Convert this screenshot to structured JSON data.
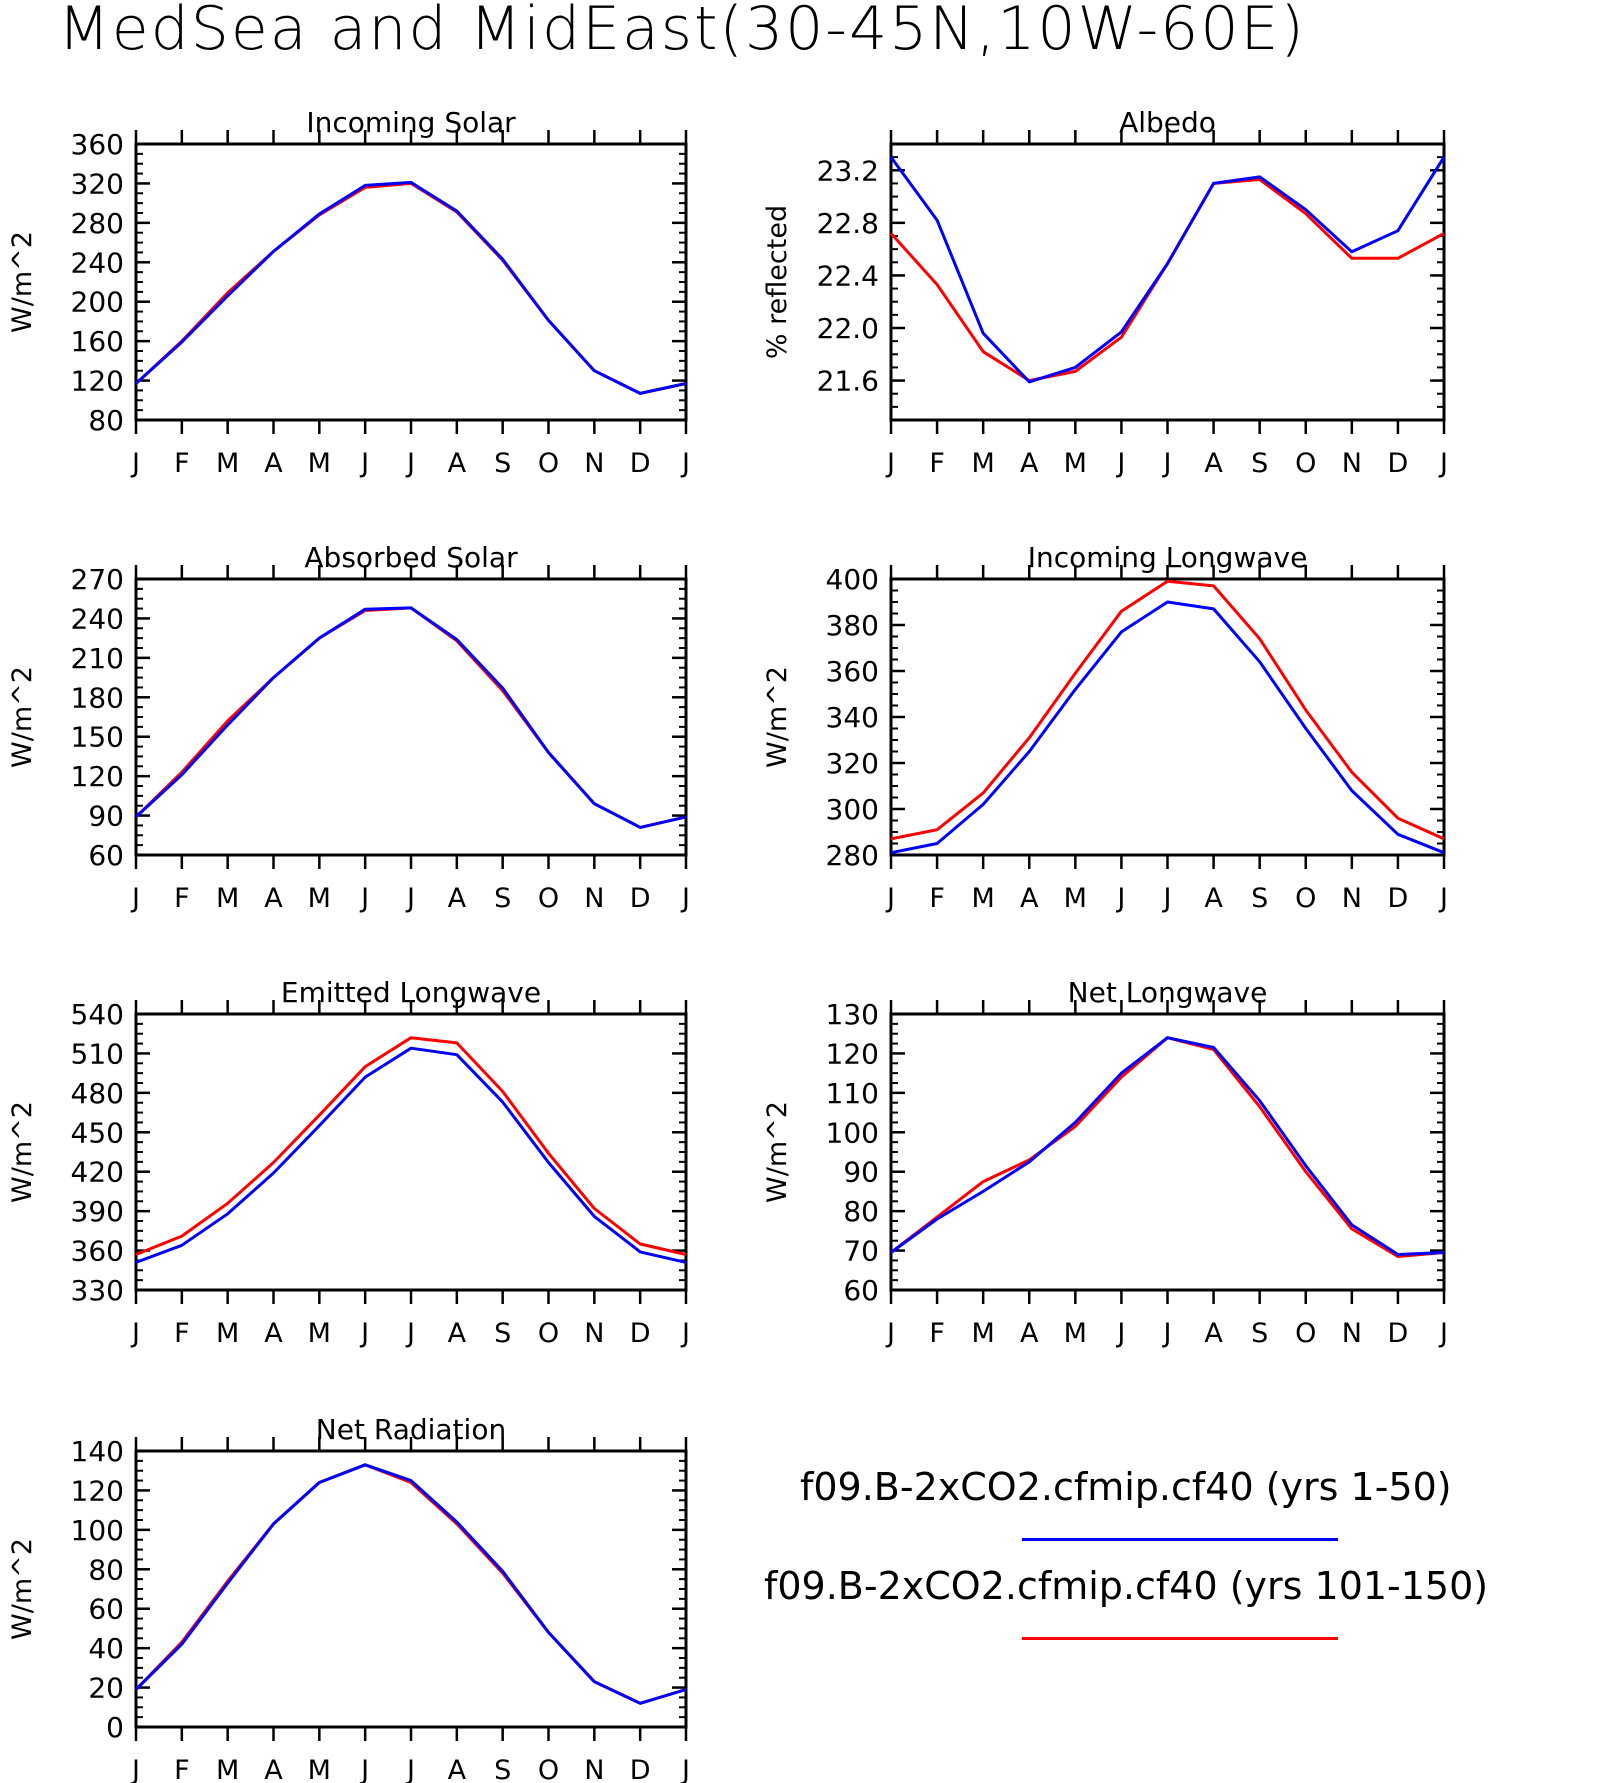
{
  "title": "MedSea and MidEast(30-45N,10W-60E)",
  "months": [
    "J",
    "F",
    "M",
    "A",
    "M",
    "J",
    "J",
    "A",
    "S",
    "O",
    "N",
    "D",
    "J"
  ],
  "series": [
    {
      "name": "f09.B-2xCO2.cfmip.cf40 (yrs 1-50)",
      "color": "#0000ff"
    },
    {
      "name": "f09.B-2xCO2.cfmip.cf40 (yrs 101-150)",
      "color": "#ff0000"
    }
  ],
  "chart_data": [
    {
      "type": "line",
      "title": "Incoming Solar",
      "ylabel": "W/m^2",
      "ylim": [
        80,
        360
      ],
      "yticks": [
        "80",
        "120",
        "160",
        "200",
        "240",
        "280",
        "320",
        "360"
      ],
      "categories": [
        "J",
        "F",
        "M",
        "A",
        "M",
        "J",
        "J",
        "A",
        "S",
        "O",
        "N",
        "D",
        "J"
      ],
      "series": [
        {
          "name": "f09.B-2xCO2.cfmip.cf40 (yrs 1-50)",
          "values": [
            117,
            159,
            206,
            251,
            289,
            318,
            321,
            292,
            243,
            181,
            130,
            107,
            117
          ]
        },
        {
          "name": "f09.B-2xCO2.cfmip.cf40 (yrs 101-150)",
          "values": [
            117,
            160,
            209,
            251,
            288,
            316,
            320,
            291,
            242,
            181,
            130,
            107,
            117
          ]
        }
      ]
    },
    {
      "type": "line",
      "title": "Albedo",
      "ylabel": "% reflected",
      "ylim": [
        21.3,
        23.4
      ],
      "yticks": [
        "21.6",
        "22.0",
        "22.4",
        "22.8",
        "23.2"
      ],
      "categories": [
        "J",
        "F",
        "M",
        "A",
        "M",
        "J",
        "J",
        "A",
        "S",
        "O",
        "N",
        "D",
        "J"
      ],
      "series": [
        {
          "name": "f09.B-2xCO2.cfmip.cf40 (yrs 1-50)",
          "values": [
            23.3,
            22.82,
            21.96,
            21.59,
            21.7,
            21.97,
            22.49,
            23.1,
            23.15,
            22.9,
            22.58,
            22.74,
            23.3
          ]
        },
        {
          "name": "f09.B-2xCO2.cfmip.cf40 (yrs 101-150)",
          "values": [
            22.72,
            22.33,
            21.82,
            21.6,
            21.67,
            21.93,
            22.49,
            23.1,
            23.13,
            22.87,
            22.53,
            22.53,
            22.72
          ]
        }
      ]
    },
    {
      "type": "line",
      "title": "Absorbed Solar",
      "ylabel": "W/m^2",
      "ylim": [
        60,
        270
      ],
      "yticks": [
        "60",
        "90",
        "120",
        "150",
        "180",
        "210",
        "240",
        "270"
      ],
      "categories": [
        "J",
        "F",
        "M",
        "A",
        "M",
        "J",
        "J",
        "A",
        "S",
        "O",
        "N",
        "D",
        "J"
      ],
      "series": [
        {
          "name": "f09.B-2xCO2.cfmip.cf40 (yrs 1-50)",
          "values": [
            89,
            121,
            159,
            195,
            225,
            247,
            248,
            224,
            187,
            138,
            99,
            81,
            89
          ]
        },
        {
          "name": "f09.B-2xCO2.cfmip.cf40 (yrs 101-150)",
          "values": [
            89,
            123,
            162,
            195,
            225,
            246,
            248,
            223,
            185,
            138,
            99,
            81,
            89
          ]
        }
      ]
    },
    {
      "type": "line",
      "title": "Incoming Longwave",
      "ylabel": "W/m^2",
      "ylim": [
        280,
        400
      ],
      "yticks": [
        "280",
        "300",
        "320",
        "340",
        "360",
        "380",
        "400"
      ],
      "categories": [
        "J",
        "F",
        "M",
        "A",
        "M",
        "J",
        "J",
        "A",
        "S",
        "O",
        "N",
        "D",
        "J"
      ],
      "series": [
        {
          "name": "f09.B-2xCO2.cfmip.cf40 (yrs 1-50)",
          "values": [
            281,
            285,
            302,
            325,
            352,
            377,
            390,
            387,
            364,
            335,
            308,
            289,
            281
          ]
        },
        {
          "name": "f09.B-2xCO2.cfmip.cf40 (yrs 101-150)",
          "values": [
            287,
            291,
            307,
            331,
            359,
            386,
            399,
            397,
            374,
            343,
            316,
            296,
            287
          ]
        }
      ]
    },
    {
      "type": "line",
      "title": "Emitted Longwave",
      "ylabel": "W/m^2",
      "ylim": [
        330,
        540
      ],
      "yticks": [
        "330",
        "360",
        "390",
        "420",
        "450",
        "480",
        "510",
        "540"
      ],
      "categories": [
        "J",
        "F",
        "M",
        "A",
        "M",
        "J",
        "J",
        "A",
        "S",
        "O",
        "N",
        "D",
        "J"
      ],
      "series": [
        {
          "name": "f09.B-2xCO2.cfmip.cf40 (yrs 1-50)",
          "values": [
            351,
            364,
            388,
            419,
            455,
            492,
            514,
            509,
            473,
            427,
            386,
            359,
            351
          ]
        },
        {
          "name": "f09.B-2xCO2.cfmip.cf40 (yrs 101-150)",
          "values": [
            357,
            371,
            396,
            427,
            463,
            500,
            522,
            518,
            481,
            434,
            392,
            365,
            357
          ]
        }
      ]
    },
    {
      "type": "line",
      "title": "Net Longwave",
      "ylabel": "W/m^2",
      "ylim": [
        60,
        130
      ],
      "yticks": [
        "60",
        "70",
        "80",
        "90",
        "100",
        "110",
        "120",
        "130"
      ],
      "categories": [
        "J",
        "F",
        "M",
        "A",
        "M",
        "J",
        "J",
        "A",
        "S",
        "O",
        "N",
        "D",
        "J"
      ],
      "series": [
        {
          "name": "f09.B-2xCO2.cfmip.cf40 (yrs 1-50)",
          "values": [
            69.5,
            78,
            85,
            92.5,
            102.5,
            115,
            124,
            121.5,
            108,
            91.5,
            76.5,
            69,
            69.5
          ]
        },
        {
          "name": "f09.B-2xCO2.cfmip.cf40 (yrs 101-150)",
          "values": [
            69.5,
            78.5,
            87.5,
            93,
            101.5,
            114,
            124,
            121,
            106.5,
            90,
            75.5,
            68.5,
            69.5
          ]
        }
      ]
    },
    {
      "type": "line",
      "title": "Net Radiation",
      "ylabel": "W/m^2",
      "ylim": [
        0,
        140
      ],
      "yticks": [
        "0",
        "20",
        "40",
        "60",
        "80",
        "100",
        "120",
        "140"
      ],
      "categories": [
        "J",
        "F",
        "M",
        "A",
        "M",
        "J",
        "J",
        "A",
        "S",
        "O",
        "N",
        "D",
        "J"
      ],
      "series": [
        {
          "name": "f09.B-2xCO2.cfmip.cf40 (yrs 1-50)",
          "values": [
            19,
            42,
            73,
            103,
            124,
            133,
            125,
            104,
            79,
            48,
            23,
            12,
            19
          ]
        },
        {
          "name": "f09.B-2xCO2.cfmip.cf40 (yrs 101-150)",
          "values": [
            19,
            43,
            74,
            103,
            124,
            133,
            124,
            103,
            78,
            48,
            23,
            12,
            19
          ]
        }
      ]
    }
  ]
}
